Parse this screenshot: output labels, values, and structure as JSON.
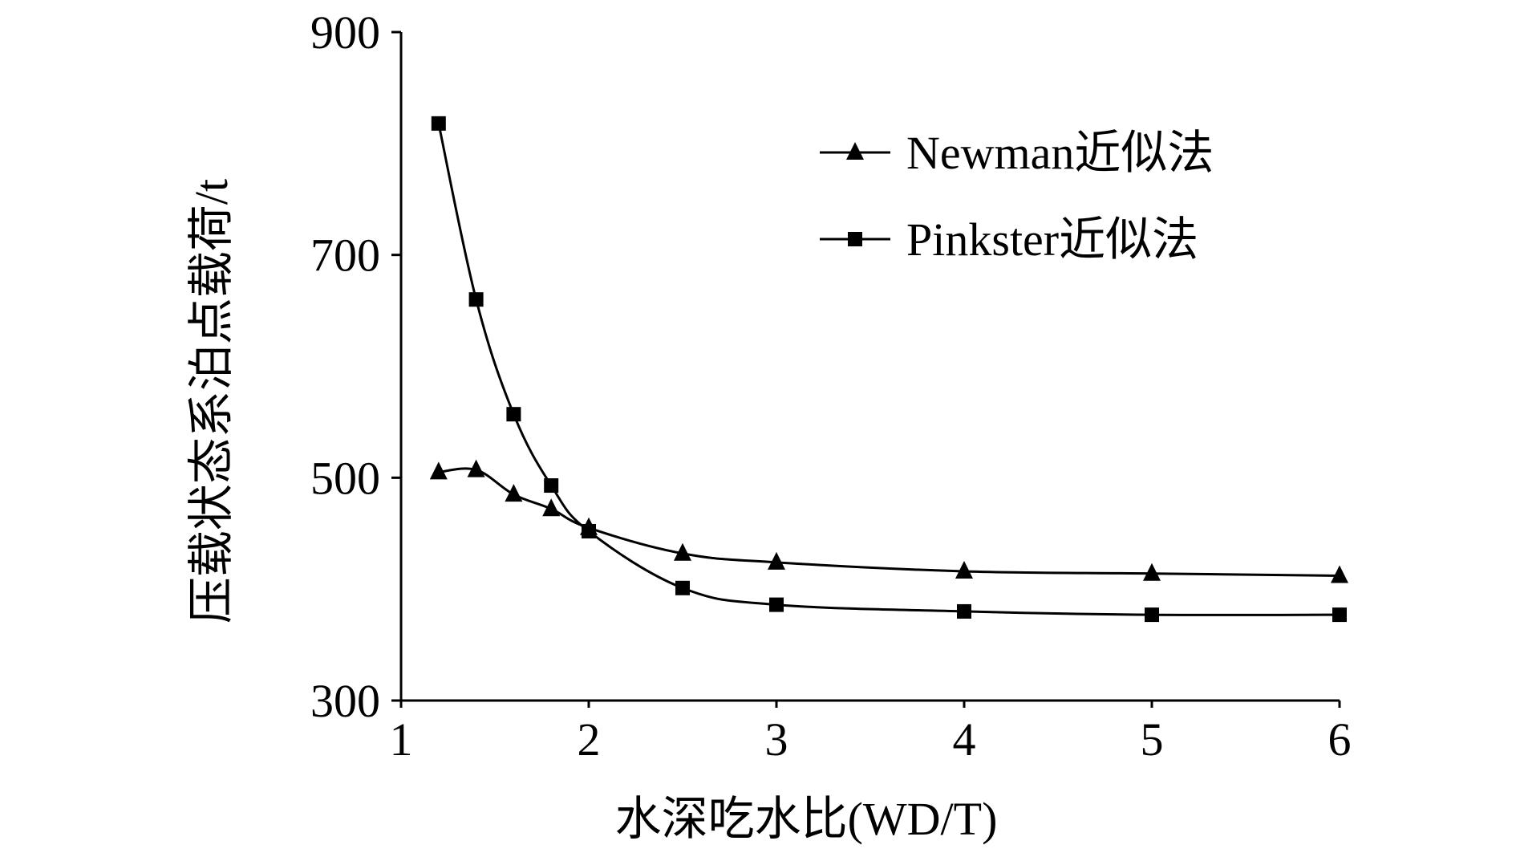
{
  "chart_data": {
    "type": "line",
    "xlabel": "水深吃水比(WD/T)",
    "ylabel": "压载状态系泊点载荷/t",
    "xlim": [
      1,
      6
    ],
    "ylim": [
      300,
      900
    ],
    "x_ticks": [
      "1",
      "2",
      "3",
      "4",
      "5",
      "6"
    ],
    "y_ticks": [
      "300",
      "500",
      "700",
      "900"
    ],
    "grid": false,
    "legend_position": "top-right",
    "series": [
      {
        "name": "Newman近似法",
        "marker": "triangle",
        "color": "#000000",
        "x": [
          1.2,
          1.4,
          1.6,
          1.8,
          2.0,
          2.5,
          3.0,
          4.0,
          5.0,
          6.0
        ],
        "y": [
          505,
          507,
          485,
          472,
          455,
          432,
          424,
          416,
          414,
          412
        ]
      },
      {
        "name": "Pinkster近似法",
        "marker": "square",
        "color": "#000000",
        "x": [
          1.2,
          1.4,
          1.6,
          1.8,
          2.0,
          2.5,
          3.0,
          4.0,
          5.0,
          6.0
        ],
        "y": [
          818,
          660,
          557,
          493,
          452,
          401,
          386,
          380,
          377,
          377
        ]
      }
    ]
  }
}
